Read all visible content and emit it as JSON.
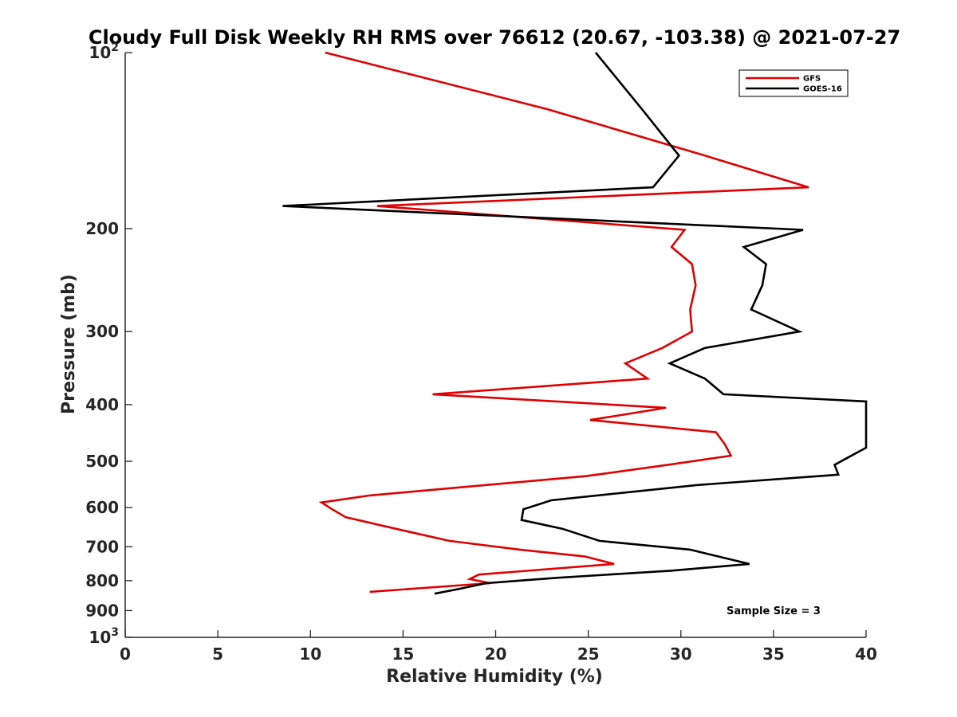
{
  "chart_data": {
    "type": "line",
    "title": "Cloudy Full Disk Weekly RH RMS over 76612 (20.67, -103.38) @ 2021-07-27",
    "xlabel": "Relative Humidity (%)",
    "ylabel": "Pressure (mb)",
    "xlim": [
      0,
      40
    ],
    "ylim": [
      100,
      1000
    ],
    "yscale": "log",
    "y_reversed": true,
    "x_ticks": [
      0,
      5,
      10,
      15,
      20,
      25,
      30,
      35,
      40
    ],
    "x_tick_labels": [
      "0",
      "5",
      "10",
      "15",
      "20",
      "25",
      "30",
      "35",
      "40"
    ],
    "y_ticks": [
      {
        "value": 100,
        "base": "10",
        "exp": "2"
      },
      {
        "value": 200,
        "label": "200"
      },
      {
        "value": 300,
        "label": "300"
      },
      {
        "value": 400,
        "label": "400"
      },
      {
        "value": 500,
        "label": "500"
      },
      {
        "value": 600,
        "label": "600"
      },
      {
        "value": 700,
        "label": "700"
      },
      {
        "value": 800,
        "label": "800"
      },
      {
        "value": 900,
        "label": "900"
      },
      {
        "value": 1000,
        "base": "10",
        "exp": "3"
      }
    ],
    "legend_position": "top-right",
    "annotation": "Sample Size = 3",
    "series": [
      {
        "name": "GFS",
        "color": "#e00000",
        "points": [
          [
            10.8,
            100
          ],
          [
            22.8,
            125
          ],
          [
            31.3,
            150
          ],
          [
            36.9,
            170
          ],
          [
            13.6,
            183
          ],
          [
            30.2,
            201
          ],
          [
            29.5,
            215
          ],
          [
            30.6,
            230
          ],
          [
            30.8,
            250
          ],
          [
            30.5,
            275
          ],
          [
            30.6,
            300
          ],
          [
            29.0,
            320
          ],
          [
            27.0,
            340
          ],
          [
            28.2,
            361
          ],
          [
            16.6,
            384
          ],
          [
            29.2,
            405
          ],
          [
            25.1,
            425
          ],
          [
            31.9,
            446
          ],
          [
            32.4,
            469
          ],
          [
            32.7,
            489
          ],
          [
            29.5,
            506
          ],
          [
            24.9,
            530
          ],
          [
            17.8,
            555
          ],
          [
            13.2,
            572
          ],
          [
            10.6,
            588
          ],
          [
            11.1,
            602
          ],
          [
            11.9,
            623
          ],
          [
            14.6,
            652
          ],
          [
            17.5,
            684
          ],
          [
            21.3,
            708
          ],
          [
            24.8,
            727
          ],
          [
            26.4,
            749
          ],
          [
            19.1,
            781
          ],
          [
            18.6,
            795
          ],
          [
            19.7,
            808
          ],
          [
            13.2,
            836
          ]
        ]
      },
      {
        "name": "GOES-16",
        "color": "#000000",
        "points": [
          [
            25.4,
            100
          ],
          [
            27.9,
            125
          ],
          [
            29.9,
            150
          ],
          [
            28.5,
            170
          ],
          [
            8.5,
            183
          ],
          [
            36.6,
            201
          ],
          [
            33.4,
            215
          ],
          [
            34.6,
            230
          ],
          [
            34.4,
            250
          ],
          [
            33.8,
            275
          ],
          [
            36.4,
            300
          ],
          [
            31.3,
            320
          ],
          [
            29.4,
            340
          ],
          [
            31.3,
            361
          ],
          [
            32.3,
            384
          ],
          [
            40.0,
            395
          ],
          [
            40.0,
            474
          ],
          [
            39.1,
            491
          ],
          [
            38.3,
            507
          ],
          [
            38.5,
            527
          ],
          [
            30.9,
            549
          ],
          [
            23.0,
            583
          ],
          [
            21.5,
            604
          ],
          [
            21.4,
            630
          ],
          [
            23.6,
            652
          ],
          [
            25.6,
            684
          ],
          [
            30.5,
            708
          ],
          [
            32.0,
            727
          ],
          [
            33.7,
            749
          ],
          [
            29.5,
            769
          ],
          [
            23.3,
            791
          ],
          [
            19.5,
            808
          ],
          [
            18.0,
            827
          ],
          [
            16.7,
            842
          ]
        ]
      }
    ]
  }
}
